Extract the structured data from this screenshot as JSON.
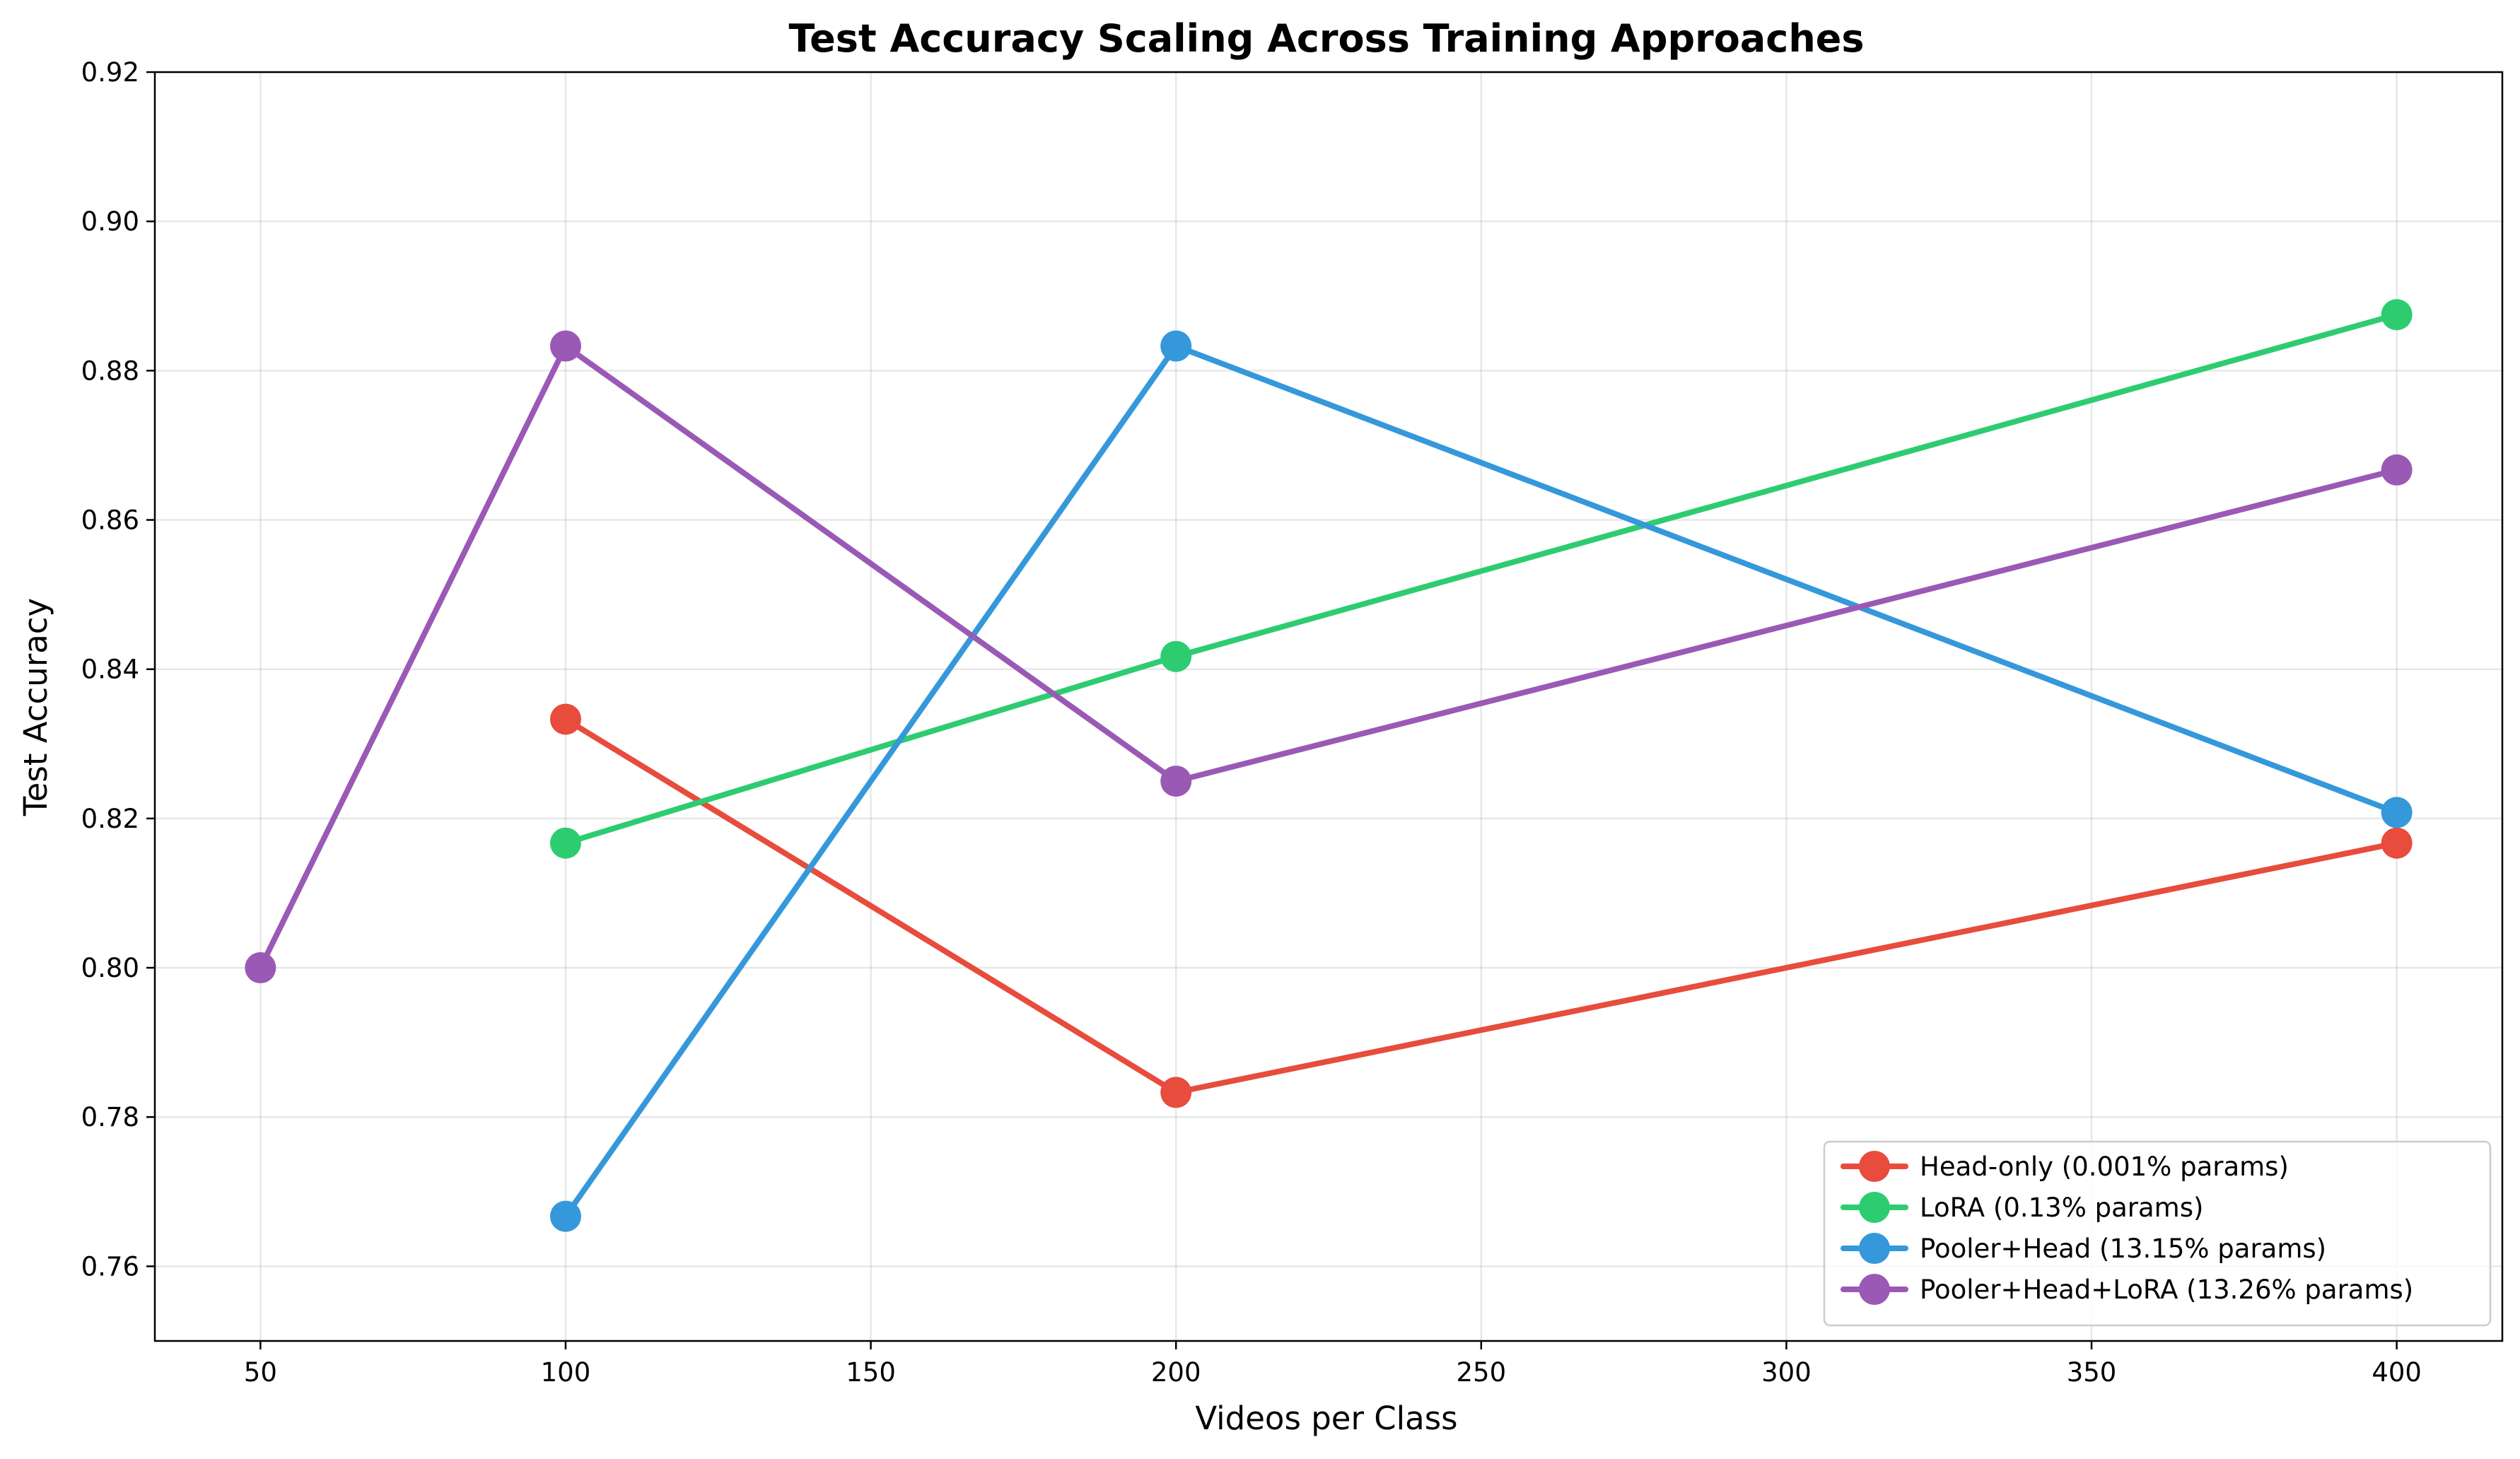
{
  "chart_data": {
    "type": "line",
    "title": "Test Accuracy Scaling Across Training Approaches",
    "xlabel": "Videos per Class",
    "ylabel": "Test Accuracy",
    "xlim": [
      32.7,
      417.3
    ],
    "ylim": [
      0.75,
      0.92
    ],
    "xticks": [
      50,
      100,
      150,
      200,
      250,
      300,
      350,
      400
    ],
    "yticks": [
      0.76,
      0.78,
      0.8,
      0.82,
      0.84,
      0.86,
      0.88,
      0.9,
      0.92
    ],
    "xtick_labels": [
      "50",
      "100",
      "150",
      "200",
      "250",
      "300",
      "350",
      "400"
    ],
    "ytick_labels": [
      "0.76",
      "0.78",
      "0.80",
      "0.82",
      "0.84",
      "0.86",
      "0.88",
      "0.90",
      "0.92"
    ],
    "grid": true,
    "legend_position": "lower-right",
    "series": [
      {
        "name": "Head-only (0.001% params)",
        "color": "#e74c3c",
        "x": [
          100,
          200,
          400
        ],
        "y": [
          0.8333,
          0.7833,
          0.8167
        ]
      },
      {
        "name": "LoRA (0.13% params)",
        "color": "#2ecc71",
        "x": [
          100,
          200,
          400
        ],
        "y": [
          0.8167,
          0.8417,
          0.8875
        ]
      },
      {
        "name": "Pooler+Head (13.15% params)",
        "color": "#3498db",
        "x": [
          100,
          200,
          400
        ],
        "y": [
          0.7667,
          0.8833,
          0.8208
        ]
      },
      {
        "name": "Pooler+Head+LoRA (13.26% params)",
        "color": "#9b59b6",
        "x": [
          50,
          100,
          200,
          400
        ],
        "y": [
          0.8,
          0.8833,
          0.825,
          0.8667
        ]
      }
    ]
  }
}
